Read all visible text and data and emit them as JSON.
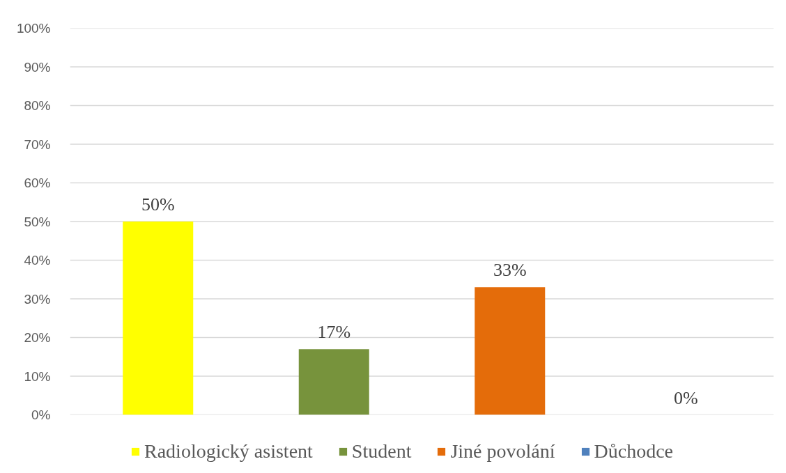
{
  "chart_data": {
    "type": "bar",
    "categories": [
      null,
      null,
      null,
      null
    ],
    "series": [
      {
        "name": "Radiologický asistent",
        "color": "#ffff00",
        "values": [
          50,
          null,
          null,
          null
        ],
        "value_labels": [
          "50%",
          null,
          null,
          null
        ]
      },
      {
        "name": "Student",
        "color": "#77933c",
        "values": [
          null,
          17,
          null,
          null
        ],
        "value_labels": [
          null,
          "17%",
          null,
          null
        ]
      },
      {
        "name": "Jiné povolání",
        "color": "#e46c0a",
        "values": [
          null,
          null,
          33,
          null
        ],
        "value_labels": [
          null,
          null,
          "33%",
          null
        ]
      },
      {
        "name": "Důchodce",
        "color": "#4f81bd",
        "values": [
          null,
          null,
          null,
          0
        ],
        "value_labels": [
          null,
          null,
          null,
          "0%"
        ]
      }
    ],
    "ylim": [
      0,
      100
    ],
    "yticks": [
      {
        "value": 0,
        "label": "0%"
      },
      {
        "value": 10,
        "label": "10%"
      },
      {
        "value": 20,
        "label": "20%"
      },
      {
        "value": 30,
        "label": "30%"
      },
      {
        "value": 40,
        "label": "40%"
      },
      {
        "value": 50,
        "label": "50%"
      },
      {
        "value": 60,
        "label": "60%"
      },
      {
        "value": 70,
        "label": "70%"
      },
      {
        "value": 80,
        "label": "80%"
      },
      {
        "value": 90,
        "label": "90%"
      },
      {
        "value": 100,
        "label": "100%"
      }
    ],
    "grid": "y",
    "legend": "bottom",
    "tick_labels": "y"
  }
}
